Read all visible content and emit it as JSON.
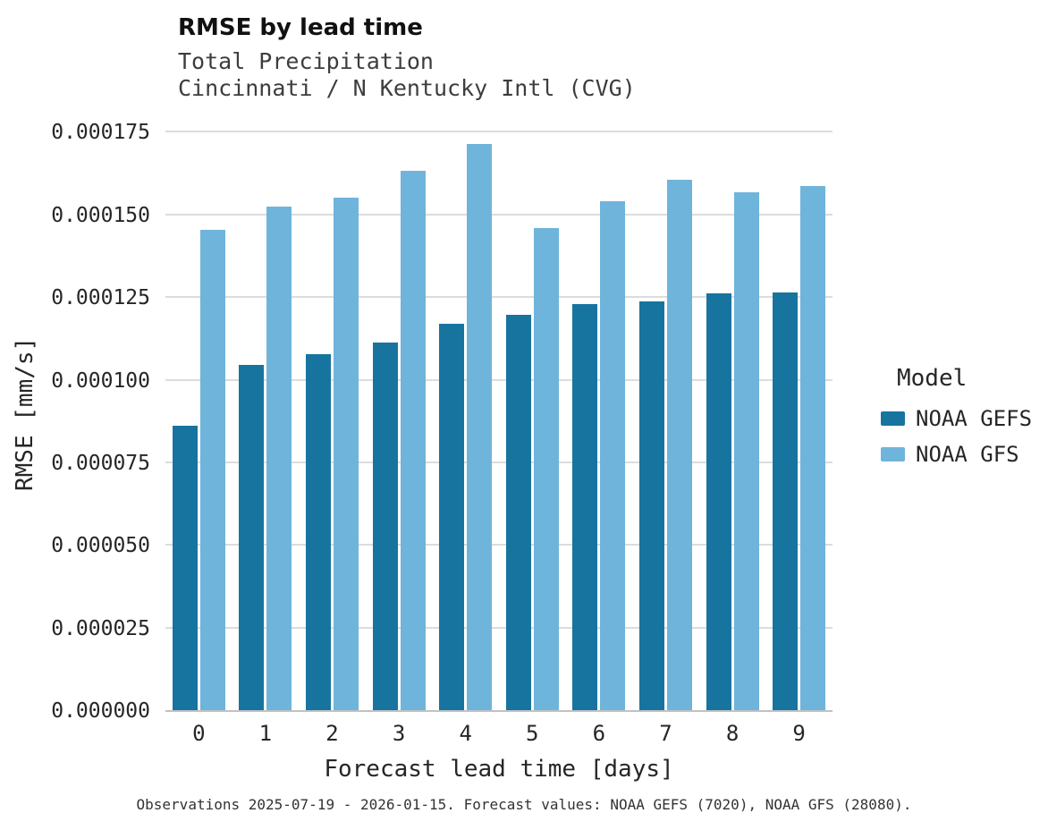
{
  "title": "RMSE by lead time",
  "subtitle1": "Total Precipitation",
  "subtitle2": "Cincinnati / N Kentucky Intl (CVG)",
  "caption": "Observations 2025-07-19 - 2026-01-15. Forecast values: NOAA GEFS (7020), NOAA GFS (28080).",
  "legend": {
    "title": "Model",
    "entries": [
      {
        "label": "NOAA GEFS",
        "color": "#17749f"
      },
      {
        "label": "NOAA GFS",
        "color": "#6fb4da"
      }
    ]
  },
  "chart_data": {
    "type": "bar",
    "title": "RMSE by lead time",
    "subtitle": "Total Precipitation — Cincinnati / N Kentucky Intl (CVG)",
    "xlabel": "Forecast lead time [days]",
    "ylabel": "RMSE [mm/s]",
    "categories": [
      "0",
      "1",
      "2",
      "3",
      "4",
      "5",
      "6",
      "7",
      "8",
      "9"
    ],
    "series": [
      {
        "name": "NOAA GEFS",
        "color": "#17749f",
        "values": [
          8.63e-05,
          0.0001047,
          0.0001079,
          0.0001115,
          0.0001171,
          0.0001198,
          0.0001231,
          0.0001239,
          0.0001263,
          0.0001266
        ]
      },
      {
        "name": "NOAA GFS",
        "color": "#6fb4da",
        "values": [
          0.0001455,
          0.0001528,
          0.0001553,
          0.0001634,
          0.0001715,
          0.0001461,
          0.0001542,
          0.0001609,
          0.0001569,
          0.0001588
        ]
      }
    ],
    "ylim": [
      0,
      0.00018
    ],
    "yticks": [
      0.0,
      2.5e-05,
      5e-05,
      7.5e-05,
      0.0001,
      0.000125,
      0.00015,
      0.000175
    ],
    "ytick_labels": [
      "0.000000",
      "0.000025",
      "0.000050",
      "0.000075",
      "0.000100",
      "0.000125",
      "0.000150",
      "0.000175"
    ],
    "grid": true,
    "legend_position": "right"
  }
}
